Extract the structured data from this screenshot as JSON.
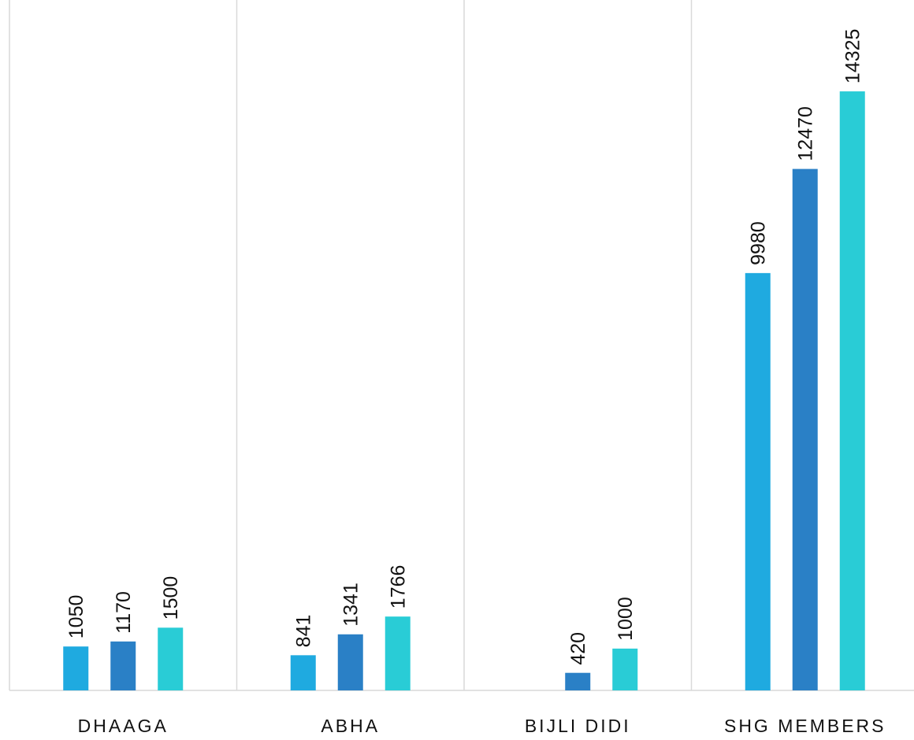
{
  "chart_data": {
    "type": "bar",
    "categories": [
      "DHAAGA",
      "ABHA",
      "BIJLI DIDI",
      "SHG MEMBERS"
    ],
    "series": [
      {
        "color": "#1faae0",
        "values": [
          1050,
          841,
          null,
          9980
        ]
      },
      {
        "color": "#2a80c6",
        "values": [
          1170,
          1341,
          420,
          12470
        ]
      },
      {
        "color": "#29ccd6",
        "values": [
          1500,
          1766,
          1000,
          14325
        ]
      }
    ],
    "ylim": [
      0,
      16510
    ]
  }
}
